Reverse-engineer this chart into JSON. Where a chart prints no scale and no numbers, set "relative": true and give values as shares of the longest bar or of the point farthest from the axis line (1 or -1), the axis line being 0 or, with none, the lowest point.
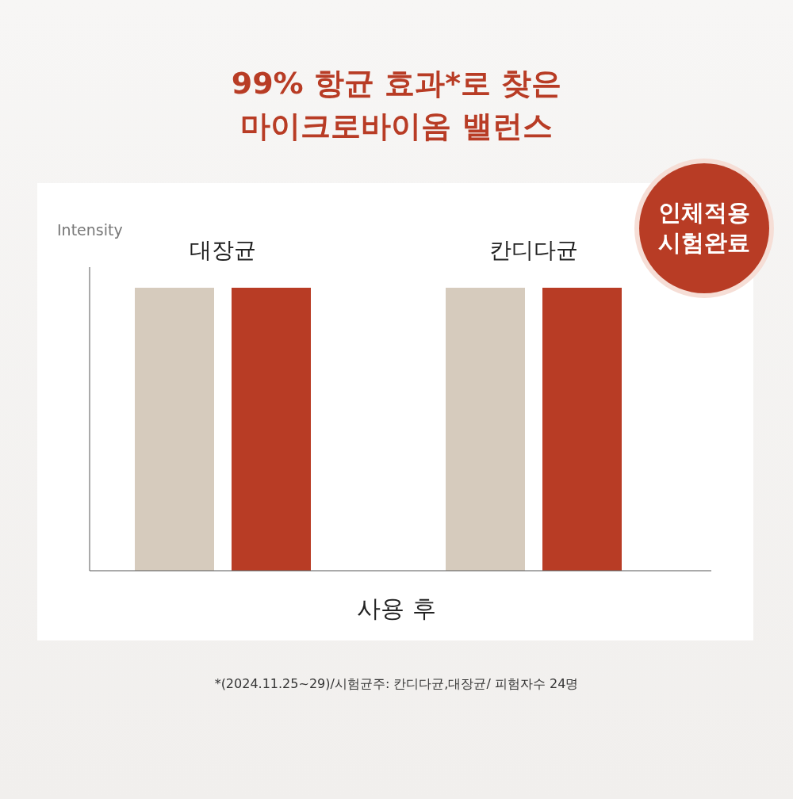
{
  "chart_data": {
    "type": "bar",
    "title": "99% 항균 효과*로 찾은\n마이크로바이옴 밸런스",
    "categories": [
      "대장균",
      "칸디다균"
    ],
    "xlabel": "사용 후",
    "ylabel": "Intensity",
    "relative": true,
    "series": [
      {
        "color": "#d6cbbd",
        "values": [
          1,
          1
        ]
      },
      {
        "color": "#b83c25",
        "values": [
          1,
          1
        ]
      }
    ],
    "annotations": [
      "인체적용\n시험완료",
      "*(2024.11.25~29)/시험균주: 칸디다균,대장균/ 피험자수 24명"
    ]
  }
}
